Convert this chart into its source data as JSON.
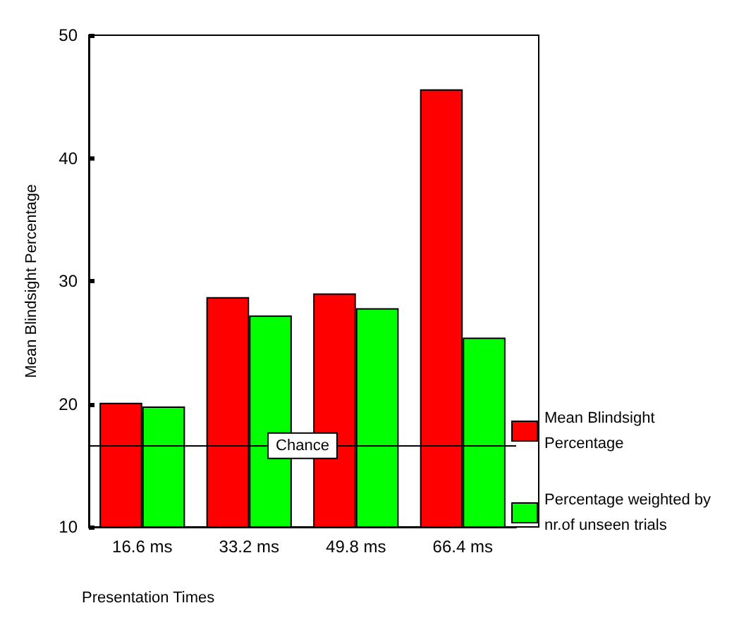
{
  "chart_data": {
    "type": "bar",
    "xlabel": "Presentation Times",
    "ylabel": "Mean Blindsight Percentage",
    "categories": [
      "16.6 ms",
      "33.2 ms",
      "49.8 ms",
      "66.4 ms"
    ],
    "series": [
      {
        "name": "Mean Blindsight Percentage",
        "color": "#ff0000",
        "values": [
          20.1,
          28.7,
          29.0,
          45.6
        ]
      },
      {
        "name": "Percentage weighted by nr.of unseen trials",
        "color": "#00ff00",
        "values": [
          19.8,
          27.2,
          27.8,
          25.4
        ]
      }
    ],
    "ylim": [
      10,
      50
    ],
    "yticks": [
      10,
      20,
      30,
      40,
      50
    ],
    "grid": false,
    "legend": "right",
    "ref_lines": [
      {
        "axis": "y",
        "value": 16.6,
        "label": "Chance",
        "color": "#000000"
      }
    ]
  }
}
